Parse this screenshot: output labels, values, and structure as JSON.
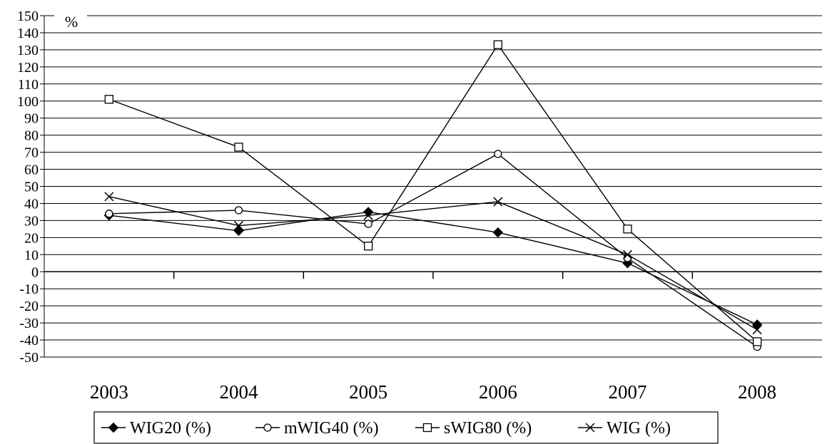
{
  "chart_data": {
    "type": "line",
    "title": "",
    "xlabel": "",
    "ylabel": "",
    "y_unit_label": "%",
    "categories": [
      "2003",
      "2004",
      "2005",
      "2006",
      "2007",
      "2008"
    ],
    "ylim": [
      -50,
      150
    ],
    "y_ticks": [
      150,
      140,
      130,
      120,
      110,
      100,
      90,
      80,
      70,
      60,
      50,
      40,
      30,
      20,
      10,
      0,
      -10,
      -20,
      -30,
      -40,
      -50
    ],
    "grid": true,
    "legend_position": "bottom",
    "series": [
      {
        "name": "WIG20 (%)",
        "marker": "filled-diamond",
        "color": "#000000",
        "values": [
          33,
          24,
          35,
          23,
          5,
          -31
        ]
      },
      {
        "name": "mWIG40 (%)",
        "marker": "open-circle",
        "color": "#000000",
        "values": [
          34,
          36,
          28,
          69,
          8,
          -44
        ]
      },
      {
        "name": "sWIG80 (%)",
        "marker": "open-square",
        "color": "#000000",
        "values": [
          101,
          73,
          15,
          133,
          25,
          -41
        ]
      },
      {
        "name": "WIG (%)",
        "marker": "x",
        "color": "#000000",
        "values": [
          44,
          27,
          33,
          41,
          10,
          -34
        ]
      }
    ]
  }
}
